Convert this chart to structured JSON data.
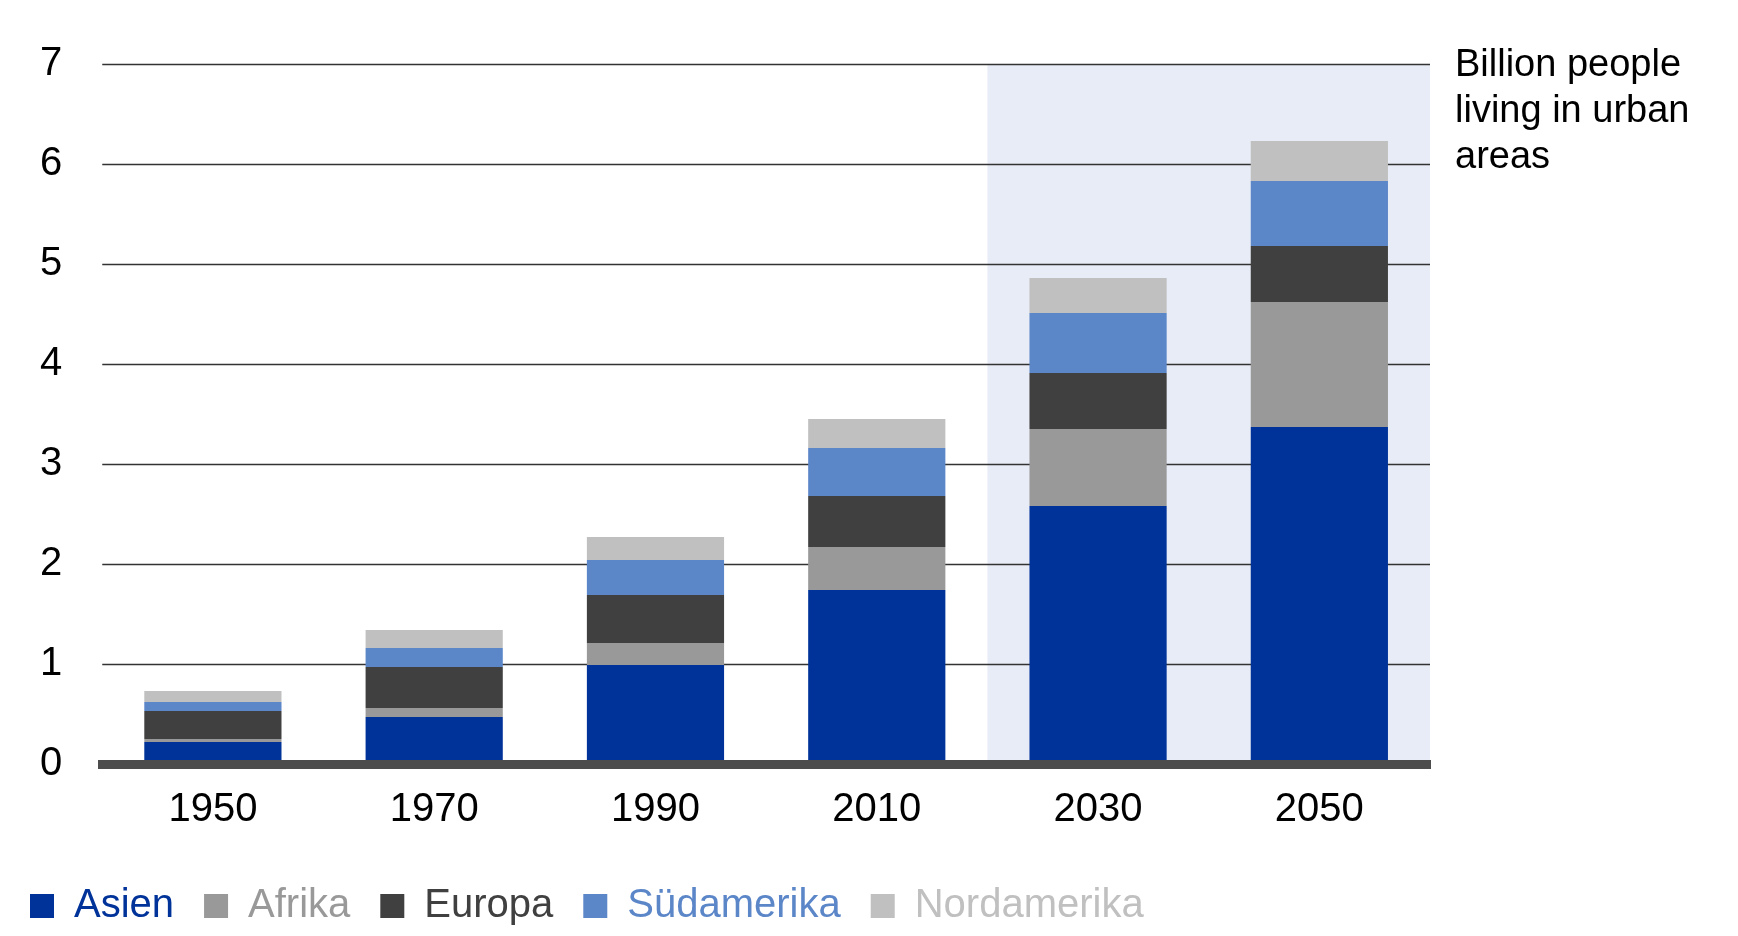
{
  "chart_data": {
    "type": "bar",
    "stacked": true,
    "categories": [
      "1950",
      "1970",
      "1990",
      "2010",
      "2030",
      "2050"
    ],
    "series": [
      {
        "name": "Asien",
        "color": "#003399",
        "values": [
          0.22,
          0.47,
          0.99,
          1.74,
          2.58,
          3.37
        ]
      },
      {
        "name": "Afrika",
        "color": "#999999",
        "values": [
          0.03,
          0.09,
          0.22,
          0.43,
          0.77,
          1.25
        ]
      },
      {
        "name": "Europa",
        "color": "#404040",
        "values": [
          0.28,
          0.41,
          0.48,
          0.51,
          0.56,
          0.56
        ]
      },
      {
        "name": "Südamerika",
        "color": "#5b86c8",
        "values": [
          0.09,
          0.19,
          0.35,
          0.48,
          0.6,
          0.65
        ]
      },
      {
        "name": "Nordamerika",
        "color": "#c0c0c0",
        "values": [
          0.11,
          0.18,
          0.23,
          0.29,
          0.35,
          0.4
        ]
      }
    ],
    "ylim": [
      0,
      7
    ],
    "yticks": [
      0,
      1,
      2,
      3,
      4,
      5,
      6,
      7
    ],
    "grid": "y",
    "legend": "bottom left",
    "bands": [
      {
        "axis": "x",
        "from": "2030",
        "to": "2050",
        "color": "#e8ecf6"
      }
    ],
    "annotations": [
      "Billion people living in urban areas"
    ]
  }
}
